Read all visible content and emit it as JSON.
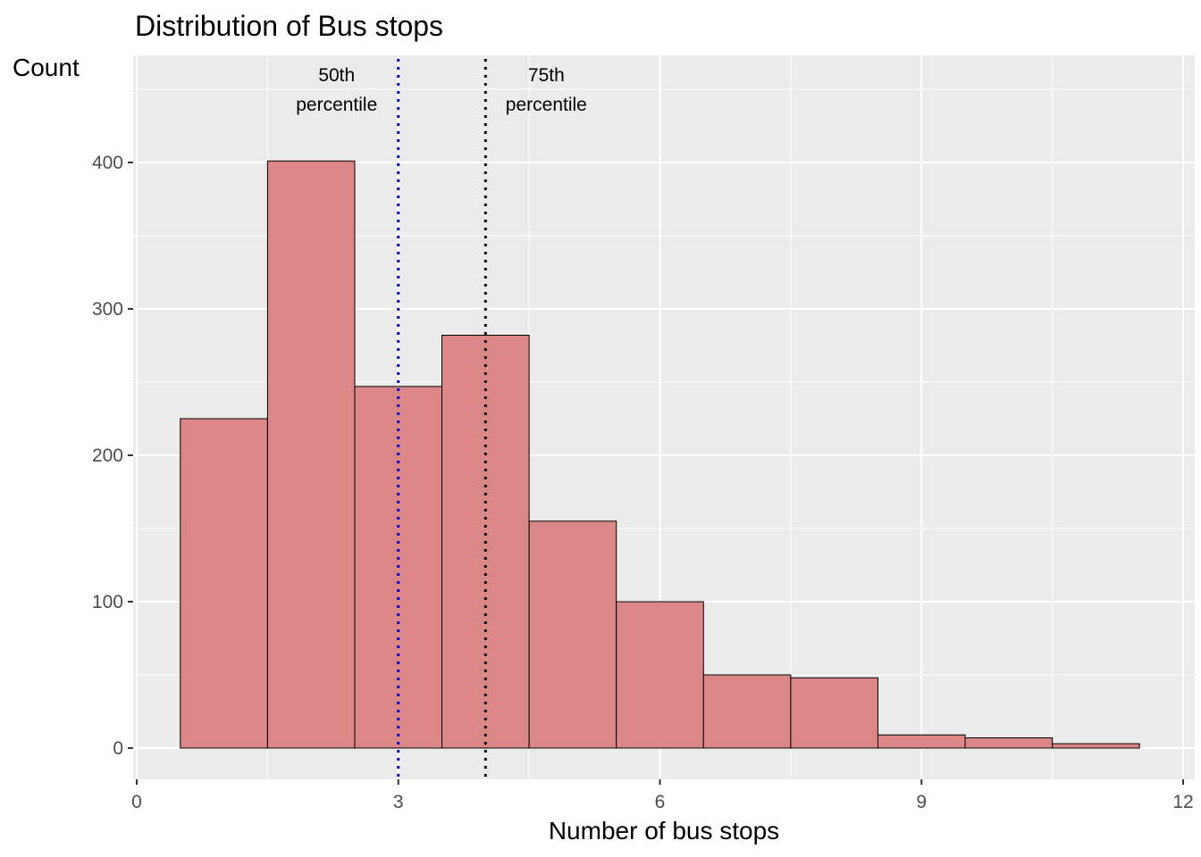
{
  "chart_data": {
    "type": "bar",
    "title": "Distribution of Bus stops",
    "xlabel": "Number of bus stops",
    "ylabel": "Count",
    "bin_width": 1,
    "x": [
      1,
      2,
      3,
      4,
      5,
      6,
      7,
      8,
      9,
      10,
      11
    ],
    "values": [
      225,
      401,
      247,
      282,
      155,
      100,
      50,
      48,
      9,
      7,
      3
    ],
    "xlim": [
      0,
      12
    ],
    "ylim": [
      0,
      460
    ],
    "xticks": [
      0,
      3,
      6,
      9,
      12
    ],
    "yticks": [
      0,
      100,
      200,
      300,
      400
    ],
    "grid": true,
    "colors": {
      "panel_background": "#ebebeb",
      "grid_line": "#ffffff",
      "bar_fill": "#dc8787",
      "bar_stroke": "#000000",
      "median_line": "#0000cd",
      "p75_line": "#000000"
    },
    "annotations": [
      {
        "name": "median-line",
        "x": 3,
        "label_lines": [
          "50th",
          "percentile"
        ],
        "label_side": "left",
        "color": "#0000cd",
        "style": "dotted"
      },
      {
        "name": "p75-line",
        "x": 4,
        "label_lines": [
          "75th",
          "percentile"
        ],
        "label_side": "right",
        "color": "#000000",
        "style": "dotted"
      }
    ]
  }
}
